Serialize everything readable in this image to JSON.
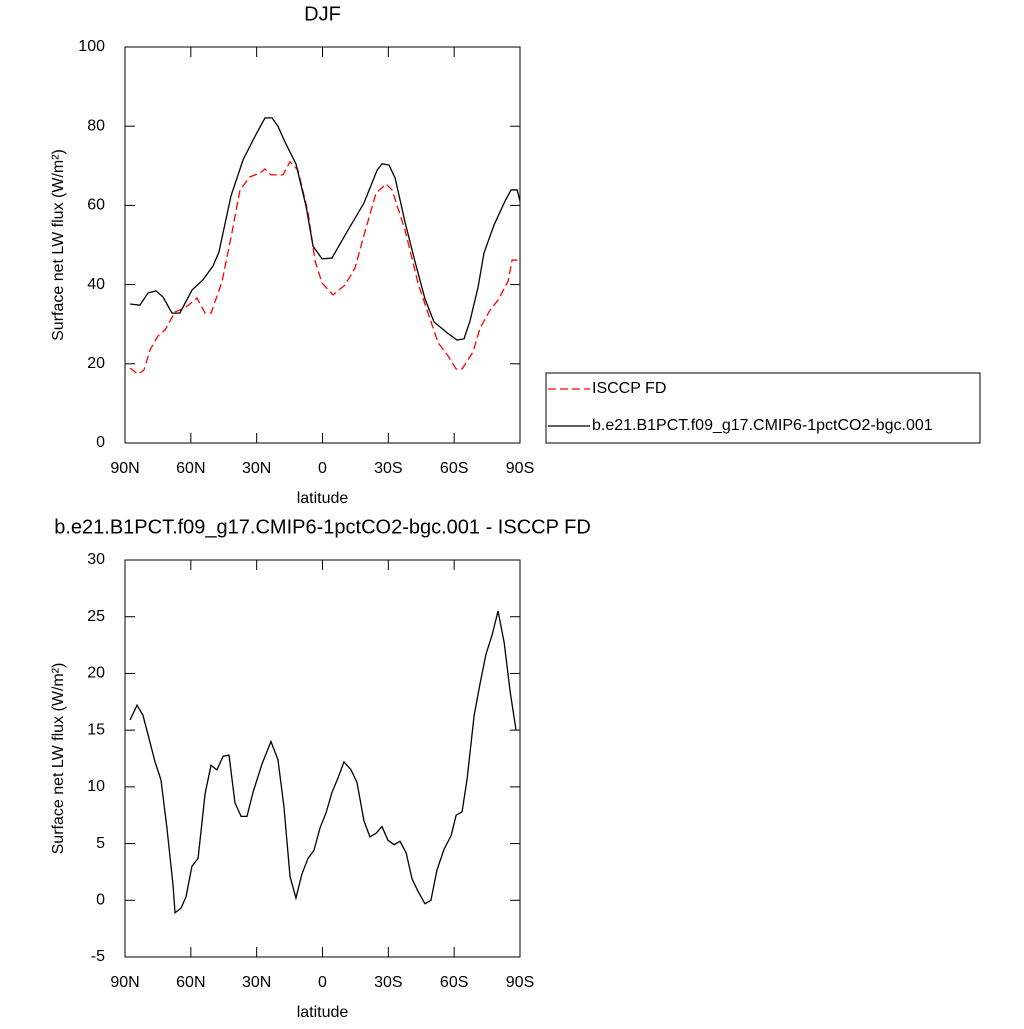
{
  "chart_data": [
    {
      "type": "line",
      "title": "DJF",
      "xlabel": "latitude",
      "ylabel": "Surface net LW flux (W/m²)",
      "xlim": [
        90,
        -90
      ],
      "ylim": [
        0,
        100
      ],
      "xticks": [
        {
          "value": 90,
          "label": "90N"
        },
        {
          "value": 60,
          "label": "60N"
        },
        {
          "value": 30,
          "label": "30N"
        },
        0,
        {
          "value": -30,
          "label": "30S"
        },
        {
          "value": -60,
          "label": "60S"
        },
        {
          "value": -90,
          "label": "90S"
        }
      ],
      "yticks": [
        0,
        20,
        40,
        60,
        80,
        100
      ],
      "legend": "right",
      "series": [
        {
          "name": "ISCCP FD",
          "color": "#ff0000",
          "dashed": true,
          "x": [
            87.7,
            84.1,
            81.4,
            78.6,
            75,
            71.8,
            67.2,
            62.7,
            57.2,
            53.5,
            50.8,
            45.8,
            41.2,
            37.6,
            33.1,
            28.5,
            26.2,
            23.5,
            18,
            14.8,
            11.2,
            6.6,
            3.4,
            0.2,
            -4.8,
            -10.3,
            -14.8,
            -18.9,
            -24.4,
            -29,
            -31.7,
            -37.6,
            -43.6,
            -48.1,
            -52.7,
            -57.2,
            -60.9,
            -63.6,
            -68.6,
            -71.8,
            -76.4,
            -80,
            -84.6,
            -86.4,
            -88.7
          ],
          "values": [
            18.9,
            17.4,
            18.4,
            23.5,
            27,
            28.5,
            33.1,
            34.1,
            36.6,
            32.8,
            32.8,
            40.7,
            53.3,
            63.9,
            67.2,
            68.2,
            69.2,
            67.7,
            67.7,
            71,
            68.9,
            58.3,
            46,
            40.4,
            37.4,
            39.9,
            44.2,
            52.5,
            63.1,
            65.4,
            63.9,
            53.8,
            40.2,
            32.8,
            25.3,
            22,
            18.7,
            18.7,
            23,
            29,
            33.6,
            36.1,
            40.9,
            46.2,
            46.2
          ]
        },
        {
          "name": "b.e21.B1PCT.f09_g17.CMIP6-1pctCO2-bgc.001",
          "color": "#000000",
          "dashed": false,
          "x": [
            87.7,
            83.2,
            79.5,
            75.9,
            72.7,
            68.6,
            65,
            59.5,
            54.5,
            49.9,
            47.2,
            41.7,
            36.2,
            30.7,
            26.2,
            23,
            20.3,
            17.1,
            12.1,
            7.5,
            4.3,
            0.2,
            -4.3,
            -10.3,
            -18.9,
            -24.9,
            -27.1,
            -30.3,
            -33.1,
            -37.6,
            -42.2,
            -46.7,
            -50.8,
            -56.8,
            -61.3,
            -64.5,
            -67.2,
            -70.9,
            -73.6,
            -78.2,
            -83.2,
            -85.9,
            -88.7,
            -90
          ],
          "values": [
            35.1,
            34.8,
            37.9,
            38.4,
            36.9,
            32.8,
            32.8,
            38.6,
            41.2,
            44.7,
            48.2,
            62.4,
            71.5,
            77.5,
            82.1,
            82.1,
            80,
            76,
            70.5,
            59.8,
            49.7,
            46.5,
            46.7,
            52.5,
            60.6,
            68.9,
            70.5,
            70.2,
            66.9,
            55.8,
            45.7,
            36.4,
            30.6,
            27.8,
            26,
            26.3,
            30.8,
            39.4,
            48,
            55.1,
            61.1,
            63.9,
            63.9,
            61.1
          ]
        }
      ]
    },
    {
      "type": "line",
      "title": "b.e21.B1PCT.f09_g17.CMIP6-1pctCO2-bgc.001 - ISCCP FD",
      "xlabel": "latitude",
      "ylabel": "Surface net LW flux (W/m²)",
      "xlim": [
        90,
        -90
      ],
      "ylim": [
        -5,
        30
      ],
      "xticks": [
        {
          "value": 90,
          "label": "90N"
        },
        {
          "value": 60,
          "label": "60N"
        },
        {
          "value": 30,
          "label": "30N"
        },
        0,
        {
          "value": -30,
          "label": "30S"
        },
        {
          "value": -60,
          "label": "60S"
        },
        {
          "value": -90,
          "label": "90S"
        }
      ],
      "yticks": [
        -5,
        0,
        5,
        10,
        15,
        20,
        25,
        30
      ],
      "color": "#000000",
      "x": [
        87.7,
        84.5,
        81.8,
        79.5,
        76.3,
        73.6,
        70.9,
        68.1,
        67.2,
        64.5,
        62.2,
        59.5,
        56.7,
        53.5,
        50.8,
        48.1,
        45.3,
        42.6,
        39.9,
        37.1,
        34.4,
        31.7,
        27.6,
        23.5,
        20.3,
        17.6,
        14.8,
        12.1,
        9.4,
        6.6,
        3.9,
        1.1,
        -1.6,
        -4.3,
        -7.1,
        -9.8,
        -13,
        -15.7,
        -18.9,
        -21.6,
        -24.4,
        -27.1,
        -29.8,
        -32.6,
        -35.3,
        -38.1,
        -40.8,
        -43.5,
        -46.7,
        -49.4,
        -52.2,
        -55.4,
        -58.6,
        -60.9,
        -63.6,
        -65.9,
        -69.1,
        -71.8,
        -74.5,
        -77.3,
        -80,
        -82.8,
        -85.5,
        -88.2
      ],
      "values": [
        15.9,
        17.2,
        16.3,
        14.6,
        12.2,
        10.6,
        6.4,
        1.3,
        -1.1,
        -0.7,
        0.3,
        3.0,
        3.7,
        9.4,
        11.9,
        11.5,
        12.7,
        12.8,
        8.6,
        7.4,
        7.4,
        9.5,
        12.0,
        14.0,
        12.4,
        8.3,
        2.1,
        0.2,
        2.3,
        3.7,
        4.4,
        6.4,
        7.7,
        9.5,
        10.8,
        12.2,
        11.5,
        10.4,
        7.0,
        5.6,
        5.9,
        6.5,
        5.3,
        4.9,
        5.2,
        4.2,
        1.9,
        0.8,
        -0.3,
        0.0,
        2.7,
        4.5,
        5.7,
        7.5,
        7.8,
        10.7,
        16.3,
        19.1,
        21.7,
        23.4,
        25.5,
        22.7,
        18.4,
        15.0
      ]
    }
  ]
}
